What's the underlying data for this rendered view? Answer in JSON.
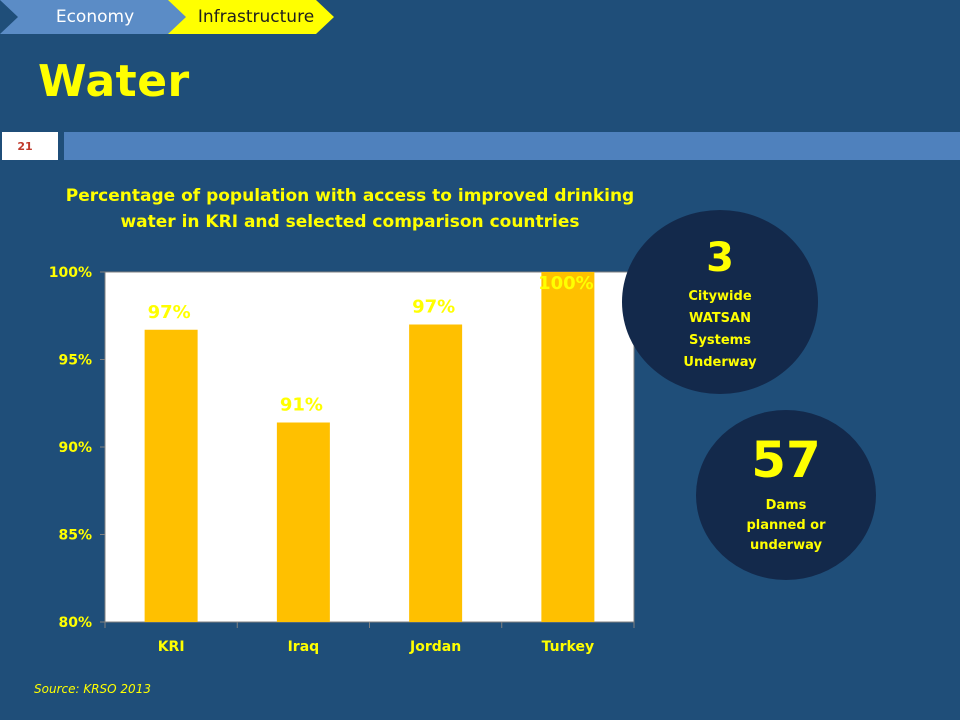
{
  "breadcrumb": {
    "items": [
      "Economy",
      "Infrastructure"
    ]
  },
  "title": "Water",
  "page_number": "21",
  "source": "Source: KRSO 2013",
  "callouts": [
    {
      "value": "3",
      "caption": "Citywide WATSAN Systems Underway"
    },
    {
      "value": "57",
      "caption": "Dams planned or underway"
    }
  ],
  "colors": {
    "background": "#1f4e79",
    "accent": "#ffff00",
    "bar": "#ffc000",
    "circle": "#13294b"
  },
  "chart_data": {
    "type": "bar",
    "title": "Percentage of population with access to improved drinking water in KRI and selected comparison countries",
    "categories": [
      "KRI",
      "Iraq",
      "Jordan",
      "Turkey"
    ],
    "values": [
      96.7,
      91.4,
      97.0,
      100.0
    ],
    "data_labels": [
      "97%",
      "91%",
      "97%",
      "100%"
    ],
    "ylim": [
      80,
      100
    ],
    "yticks": [
      80,
      85,
      90,
      95,
      100
    ],
    "ytick_labels": [
      "80%",
      "85%",
      "90%",
      "95%",
      "100%"
    ],
    "grid": false,
    "legend": "none"
  }
}
